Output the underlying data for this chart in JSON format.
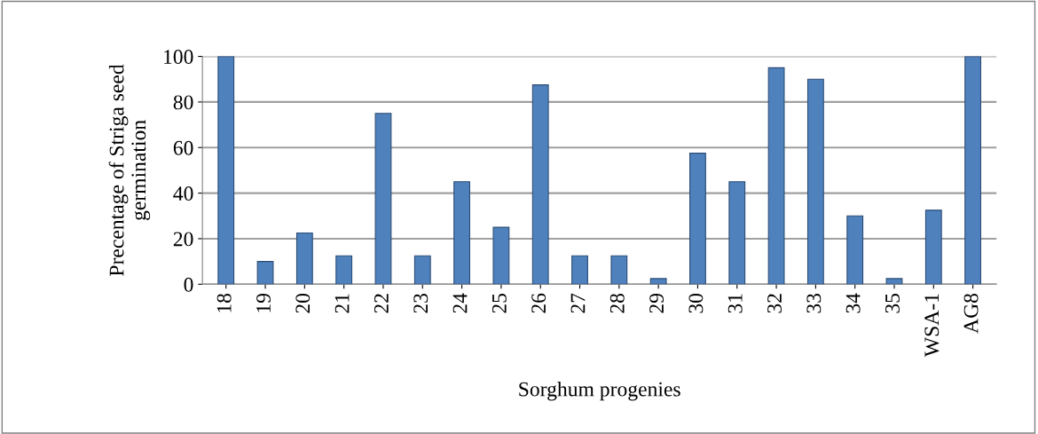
{
  "chart_data": {
    "type": "bar",
    "xlabel": "Sorghum progenies",
    "ylabel": "Precentage of Striga seed\ngermination",
    "categories": [
      "18",
      "19",
      "20",
      "21",
      "22",
      "23",
      "24",
      "25",
      "26",
      "27",
      "28",
      "29",
      "30",
      "31",
      "32",
      "33",
      "34",
      "35",
      "WSA-1",
      "AG8"
    ],
    "values": [
      100,
      10,
      22.5,
      12.5,
      75,
      12.5,
      45,
      25,
      87.5,
      12.5,
      12.5,
      2.5,
      57.5,
      45,
      95,
      90,
      30,
      2.5,
      32.5,
      100
    ],
    "color": "#4f81bd",
    "ylim": [
      0,
      100
    ],
    "yticks": [
      0,
      20,
      40,
      60,
      80,
      100
    ],
    "grid": "y",
    "legend": false
  }
}
